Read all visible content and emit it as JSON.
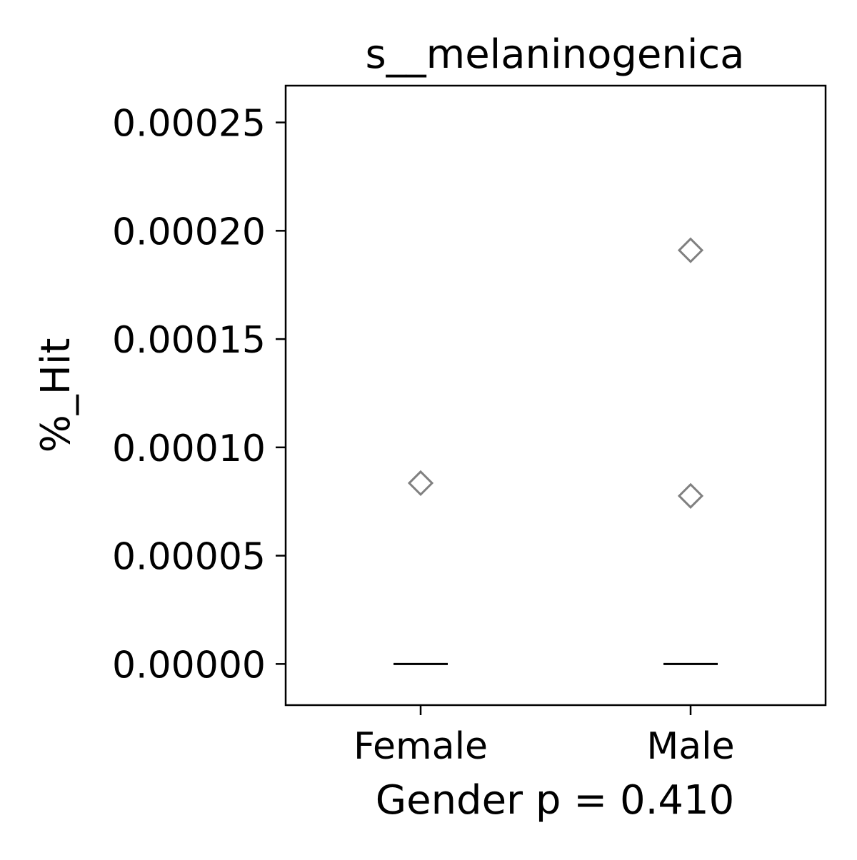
{
  "chart_data": {
    "type": "box",
    "title": "s__melaninogenica",
    "xlabel": "Gender p = 0.410",
    "ylabel": "%_Hit",
    "categories": [
      "Female",
      "Male"
    ],
    "ylim": [
      -1.9e-05,
      0.000267
    ],
    "yticks": [
      0.0,
      5e-05,
      0.0001,
      0.00015,
      0.0002,
      0.00025
    ],
    "ytick_labels": [
      "0.00000",
      "0.00005",
      "0.00010",
      "0.00015",
      "0.00020",
      "0.00025"
    ],
    "boxes": [
      {
        "category": "Female",
        "q1": 0.0,
        "median": 0.0,
        "q3": 0.0,
        "whisker_low": 0.0,
        "whisker_high": 0.0,
        "outliers": [
          8.35e-05
        ]
      },
      {
        "category": "Male",
        "q1": 0.0,
        "median": 0.0,
        "q3": 0.0,
        "whisker_low": 0.0,
        "whisker_high": 0.0,
        "outliers": [
          0.000191,
          7.76e-05
        ]
      }
    ],
    "grid": false,
    "colors": {
      "median": "#000000",
      "outlier": "#808080",
      "axes": "#000000"
    }
  }
}
